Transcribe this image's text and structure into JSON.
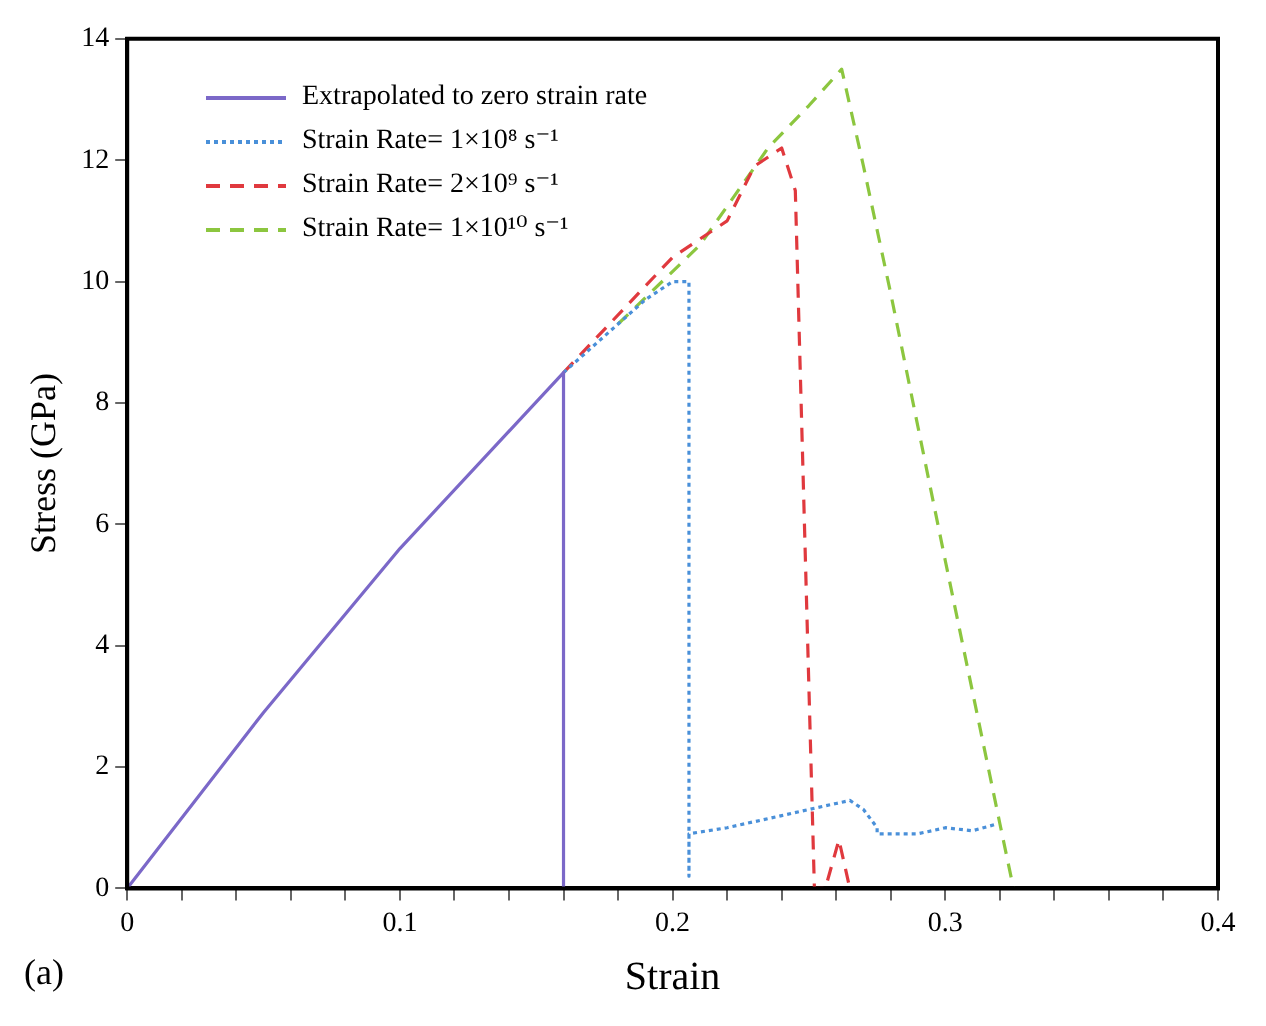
{
  "chart_data": {
    "type": "line",
    "xlabel": "Strain",
    "ylabel": "Stress (GPa)",
    "annotations": [
      "(a)"
    ],
    "xlim": [
      0,
      0.4
    ],
    "xticks": [
      0,
      {
        "value": 0.02,
        "label": null
      },
      {
        "value": 0.04,
        "label": null
      },
      {
        "value": 0.06,
        "label": null
      },
      {
        "value": 0.08,
        "label": null
      },
      0.1,
      {
        "value": 0.12,
        "label": null
      },
      {
        "value": 0.14,
        "label": null
      },
      {
        "value": 0.16,
        "label": null
      },
      {
        "value": 0.18,
        "label": null
      },
      0.2,
      {
        "value": 0.22,
        "label": null
      },
      {
        "value": 0.24,
        "label": null
      },
      {
        "value": 0.26,
        "label": null
      },
      {
        "value": 0.28,
        "label": null
      },
      0.3,
      {
        "value": 0.32,
        "label": null
      },
      {
        "value": 0.34,
        "label": null
      },
      {
        "value": 0.36,
        "label": null
      },
      {
        "value": 0.38,
        "label": null
      },
      0.4
    ],
    "ylim": [
      0,
      14
    ],
    "yticks": [
      0,
      2,
      4,
      6,
      8,
      10,
      12,
      14
    ],
    "grid": false,
    "legend": "top left",
    "marker": "none",
    "series": [
      {
        "name": "Extrapolated to zero strain rate",
        "color": "#7b68c8",
        "line_style": "solid",
        "x": [
          0,
          0.05,
          0.1,
          0.16,
          0.16
        ],
        "values": [
          0,
          2.9,
          5.6,
          8.5,
          0
        ]
      },
      {
        "name": "Strain Rate= 1×10⁸ s⁻¹",
        "color": "#4a90d9",
        "line_style": "dotted",
        "x": [
          0.16,
          0.18,
          0.19,
          0.2,
          0.206,
          0.206,
          0.206,
          0.22,
          0.24,
          0.26,
          0.265,
          0.27,
          0.275,
          0.275,
          0.29,
          0.3,
          0.31,
          0.318
        ],
        "values": [
          8.5,
          9.3,
          9.7,
          10.0,
          10.0,
          0.2,
          0.9,
          1.0,
          1.2,
          1.4,
          1.45,
          1.3,
          1.0,
          0.9,
          0.9,
          1.0,
          0.95,
          1.05
        ]
      },
      {
        "name": "Strain Rate= 2×10⁹ s⁻¹",
        "color": "#e0393e",
        "line_style": "dashed",
        "x": [
          0.16,
          0.2,
          0.22,
          0.23,
          0.24,
          0.245,
          0.252,
          0.256,
          0.261,
          0.265
        ],
        "values": [
          8.5,
          10.4,
          11.0,
          11.9,
          12.2,
          11.5,
          0,
          0,
          0.8,
          0
        ]
      },
      {
        "name": "Strain Rate= 1×10¹⁰ s⁻¹",
        "color": "#8cc63f",
        "line_style": "dashed",
        "x": [
          0.18,
          0.21,
          0.235,
          0.25,
          0.262,
          0.27,
          0.28,
          0.3,
          0.32,
          0.325
        ],
        "values": [
          9.3,
          10.6,
          12.2,
          12.9,
          13.5,
          11.9,
          9.8,
          5.4,
          1.07,
          0
        ]
      }
    ]
  }
}
